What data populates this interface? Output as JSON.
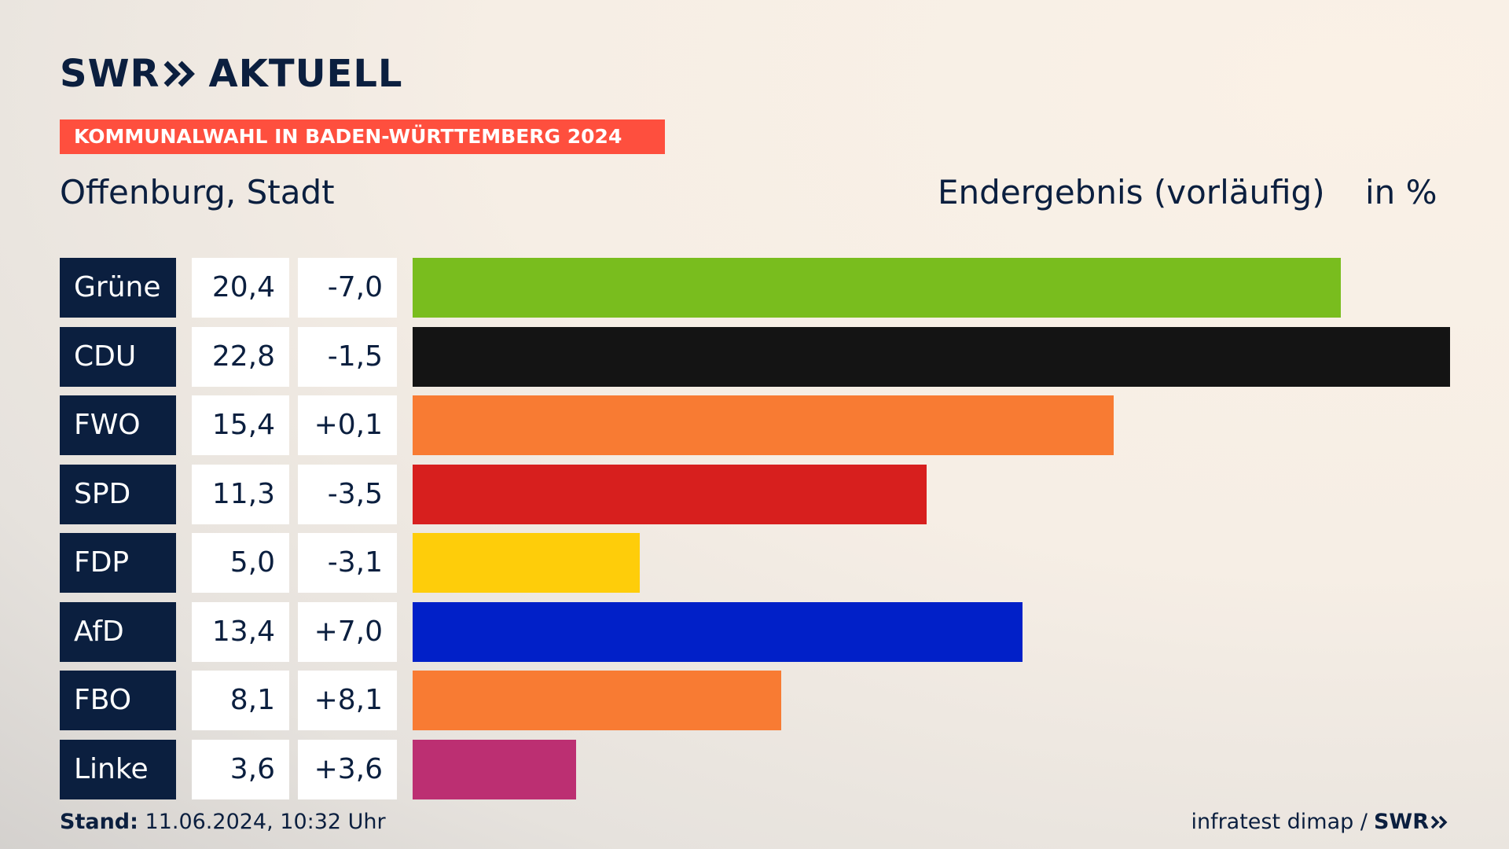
{
  "brand": {
    "logo_left": "SWR",
    "logo_right": "AKTUELL"
  },
  "banner": "KOMMUNALWAHL IN BADEN-WÜRTTEMBERG 2024",
  "place": "Offenburg, Stadt",
  "status": "Endergebnis (vorläufig)",
  "unit": "in %",
  "footer": {
    "stand_label": "Stand:",
    "stand_value": "11.06.2024, 10:32 Uhr",
    "source": "infratest dimap /",
    "source_brand": "SWR"
  },
  "colors": {
    "navy": "#0b1f3f",
    "banner": "#fe4f3e"
  },
  "chart_data": {
    "type": "bar",
    "orientation": "horizontal",
    "categories": [
      "Grüne",
      "CDU",
      "FWO",
      "SPD",
      "FDP",
      "AfD",
      "FBO",
      "Linke"
    ],
    "values": [
      20.4,
      22.8,
      15.4,
      11.3,
      5.0,
      13.4,
      8.1,
      3.6
    ],
    "value_labels": [
      "20,4",
      "22,8",
      "15,4",
      "11,3",
      "5,0",
      "13,4",
      "8,1",
      "3,6"
    ],
    "diff_labels": [
      "-7,0",
      "-1,5",
      "+0,1",
      "-3,5",
      "-3,1",
      "+7,0",
      "+8,1",
      "+3,6"
    ],
    "diffs": [
      -7.0,
      -1.5,
      0.1,
      -3.5,
      -3.1,
      7.0,
      8.1,
      3.6
    ],
    "bar_colors": [
      "#79bd1e",
      "#141414",
      "#f87b33",
      "#d71f1e",
      "#fecd0a",
      "#0120c8",
      "#f87b33",
      "#bc2f72"
    ],
    "xlim": [
      0,
      22.8
    ],
    "grid": false,
    "legend": "none"
  }
}
